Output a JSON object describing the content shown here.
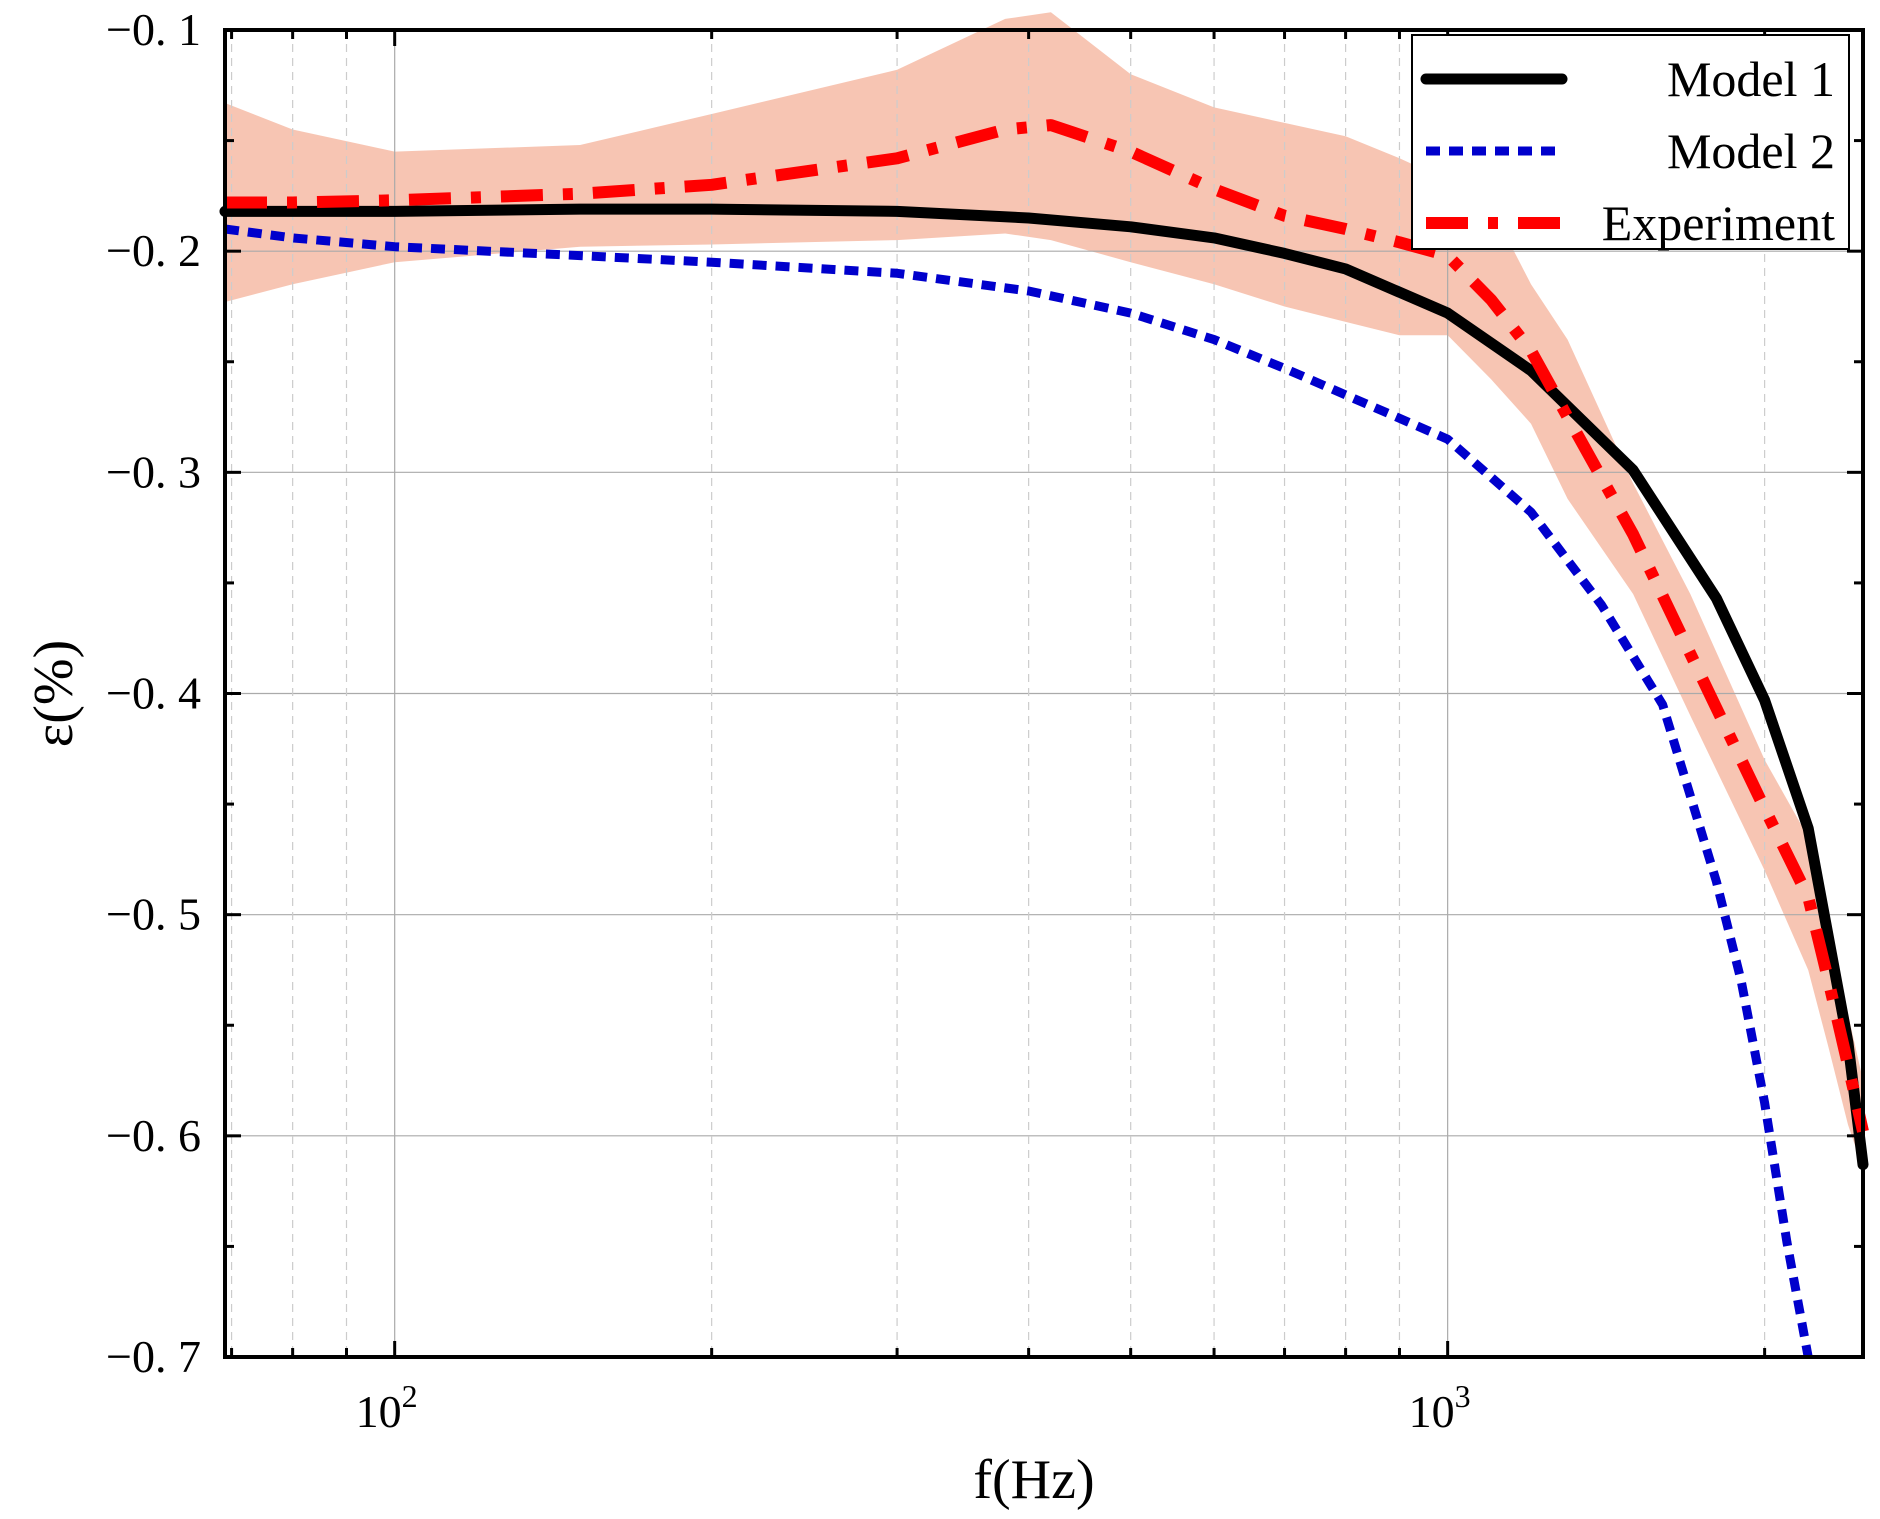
{
  "chart_data": {
    "type": "line",
    "xlabel": "f(Hz)",
    "ylabel": "ε(%)",
    "xscale": "log",
    "xlim": [
      69,
      2480
    ],
    "ylim": [
      -0.7,
      -0.1
    ],
    "yticks": [
      -0.7,
      -0.6,
      -0.5,
      -0.4,
      -0.3,
      -0.2,
      -0.1
    ],
    "ytick_labels": [
      "−0. 7",
      "−0. 6",
      "−0. 5",
      "−0. 4",
      "−0. 3",
      "−0. 2",
      "−0. 1"
    ],
    "xticks_major": [
      100,
      1000
    ],
    "xtick_labels": [
      {
        "base": "10",
        "exp": "2"
      },
      {
        "base": "10",
        "exp": "3"
      }
    ],
    "xticks_minor": [
      70,
      80,
      90,
      200,
      300,
      400,
      500,
      600,
      700,
      800,
      900,
      2000
    ],
    "grid": true,
    "legend_position": "top-right",
    "colors": {
      "model1": "#000000",
      "model2": "#0000cc",
      "experiment": "#ff0000",
      "band": "#f4b19a",
      "grid_major": "#aaaaaa",
      "grid_minor": "#cccccc"
    },
    "series": [
      {
        "key": "model1",
        "name": "Model 1",
        "style": "solid",
        "x": [
          69,
          80,
          100,
          150,
          200,
          300,
          400,
          500,
          600,
          700,
          800,
          1000,
          1200,
          1500,
          1800,
          2000,
          2200,
          2400,
          2480
        ],
        "y": [
          -0.182,
          -0.182,
          -0.182,
          -0.181,
          -0.181,
          -0.182,
          -0.185,
          -0.189,
          -0.194,
          -0.201,
          -0.208,
          -0.228,
          -0.254,
          -0.299,
          -0.357,
          -0.403,
          -0.461,
          -0.558,
          -0.613
        ]
      },
      {
        "key": "model2",
        "name": "Model 2",
        "style": "dotted",
        "x": [
          69,
          80,
          100,
          150,
          200,
          300,
          400,
          500,
          600,
          700,
          800,
          1000,
          1200,
          1400,
          1600,
          1800,
          1900,
          2000,
          2100,
          2200
        ],
        "y": [
          -0.19,
          -0.194,
          -0.198,
          -0.202,
          -0.205,
          -0.21,
          -0.218,
          -0.228,
          -0.24,
          -0.253,
          -0.265,
          -0.285,
          -0.318,
          -0.36,
          -0.405,
          -0.485,
          -0.53,
          -0.585,
          -0.648,
          -0.7
        ]
      },
      {
        "key": "experiment",
        "name": "Experiment",
        "style": "dashdot",
        "x": [
          69,
          80,
          100,
          150,
          200,
          300,
          380,
          420,
          500,
          600,
          700,
          800,
          900,
          1000,
          1100,
          1200,
          1300,
          1500,
          1700,
          2000,
          2200,
          2300,
          2400,
          2480
        ],
        "y": [
          -0.178,
          -0.178,
          -0.177,
          -0.174,
          -0.17,
          -0.158,
          -0.145,
          -0.143,
          -0.155,
          -0.172,
          -0.184,
          -0.19,
          -0.196,
          -0.202,
          -0.222,
          -0.245,
          -0.275,
          -0.328,
          -0.382,
          -0.452,
          -0.492,
          -0.53,
          -0.568,
          -0.598
        ]
      }
    ],
    "band": {
      "key": "experiment-uncertainty",
      "x": [
        69,
        80,
        100,
        150,
        200,
        300,
        380,
        420,
        500,
        600,
        700,
        800,
        900,
        1000,
        1100,
        1200,
        1300,
        1500,
        1700,
        2000,
        2200,
        2300,
        2400,
        2480
      ],
      "upper": [
        -0.133,
        -0.145,
        -0.155,
        -0.152,
        -0.138,
        -0.118,
        -0.095,
        -0.092,
        -0.12,
        -0.135,
        -0.142,
        -0.148,
        -0.158,
        -0.168,
        -0.18,
        -0.215,
        -0.24,
        -0.305,
        -0.355,
        -0.43,
        -0.465,
        -0.505,
        -0.545,
        -0.575
      ],
      "lower": [
        -0.223,
        -0.215,
        -0.205,
        -0.198,
        -0.197,
        -0.195,
        -0.192,
        -0.195,
        -0.205,
        -0.215,
        -0.225,
        -0.232,
        -0.238,
        -0.238,
        -0.258,
        -0.278,
        -0.312,
        -0.355,
        -0.41,
        -0.48,
        -0.525,
        -0.56,
        -0.595,
        -0.615
      ]
    }
  }
}
